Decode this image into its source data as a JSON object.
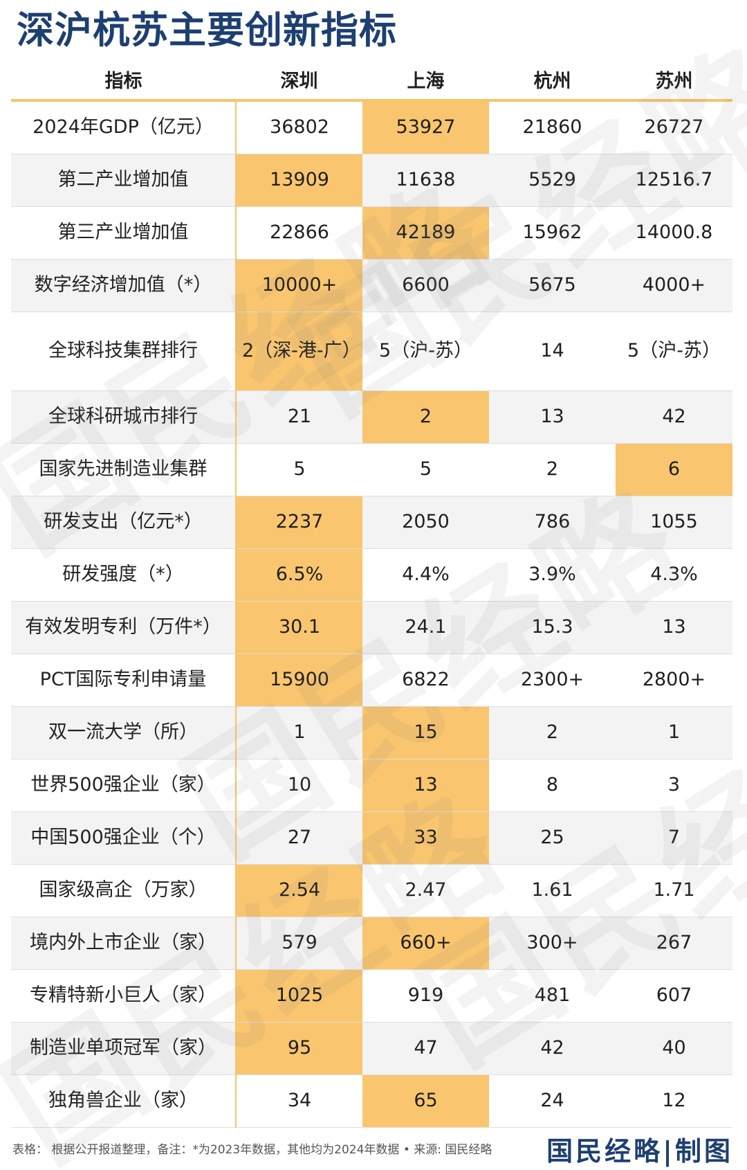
{
  "title": "深沪杭苏主要创新指标",
  "headers": [
    "指标",
    "深圳",
    "上海",
    "杭州",
    "苏州"
  ],
  "rows": [
    {
      "label": "2024年GDP（亿元）",
      "values": [
        "36802",
        "53927",
        "21860",
        "26727"
      ],
      "highlight": 1
    },
    {
      "label": "第二产业增加值",
      "values": [
        "13909",
        "11638",
        "5529",
        "12516.7"
      ],
      "highlight": 0
    },
    {
      "label": "第三产业增加值",
      "values": [
        "22866",
        "42189",
        "15962",
        "14000.8"
      ],
      "highlight": 1
    },
    {
      "label": "数字经济增加值（*）",
      "values": [
        "10000+",
        "6600",
        "5675",
        "4000+"
      ],
      "highlight": 0
    },
    {
      "label": "全球科技集群排行",
      "values": [
        "2（深-港-广）",
        "5（沪-苏）",
        "14",
        "5（沪-苏）"
      ],
      "highlight": 0,
      "tall": true
    },
    {
      "label": "全球科研城市排行",
      "values": [
        "21",
        "2",
        "13",
        "42"
      ],
      "highlight": 1
    },
    {
      "label": "国家先进制造业集群",
      "values": [
        "5",
        "5",
        "2",
        "6"
      ],
      "highlight": 3
    },
    {
      "label": "研发支出（亿元*）",
      "values": [
        "2237",
        "2050",
        "786",
        "1055"
      ],
      "highlight": 0
    },
    {
      "label": "研发强度（*）",
      "values": [
        "6.5%",
        "4.4%",
        "3.9%",
        "4.3%"
      ],
      "highlight": 0
    },
    {
      "label": "有效发明专利（万件*）",
      "values": [
        "30.1",
        "24.1",
        "15.3",
        "13"
      ],
      "highlight": 0
    },
    {
      "label": "PCT国际专利申请量",
      "values": [
        "15900",
        "6822",
        "2300+",
        "2800+"
      ],
      "highlight": 0
    },
    {
      "label": "双一流大学（所）",
      "values": [
        "1",
        "15",
        "2",
        "1"
      ],
      "highlight": 1
    },
    {
      "label": "世界500强企业（家）",
      "values": [
        "10",
        "13",
        "8",
        "3"
      ],
      "highlight": 1
    },
    {
      "label": "中国500强企业（个）",
      "values": [
        "27",
        "33",
        "25",
        "7"
      ],
      "highlight": 1
    },
    {
      "label": "国家级高企（万家）",
      "values": [
        "2.54",
        "2.47",
        "1.61",
        "1.71"
      ],
      "highlight": 0
    },
    {
      "label": "境内外上市企业（家）",
      "values": [
        "579",
        "660+",
        "300+",
        "267"
      ],
      "highlight": 1
    },
    {
      "label": "专精特新小巨人（家）",
      "values": [
        "1025",
        "919",
        "481",
        "607"
      ],
      "highlight": 0
    },
    {
      "label": "制造业单项冠军（家）",
      "values": [
        "95",
        "47",
        "42",
        "40"
      ],
      "highlight": 0
    },
    {
      "label": "独角兽企业（家）",
      "values": [
        "34",
        "65",
        "24",
        "12"
      ],
      "highlight": 1
    }
  ],
  "footer": "表格：  根据公开报道整理，备注：*为2023年数据，其他均为2024年数据 • 来源: 国民经略",
  "brand": "国民经略|制图",
  "watermark_text": "国民经略",
  "colors": {
    "title": "#1d3f72",
    "highlight": "#f9c56e",
    "rule": "#f7c36b",
    "stripe": "#f3f3f3"
  }
}
